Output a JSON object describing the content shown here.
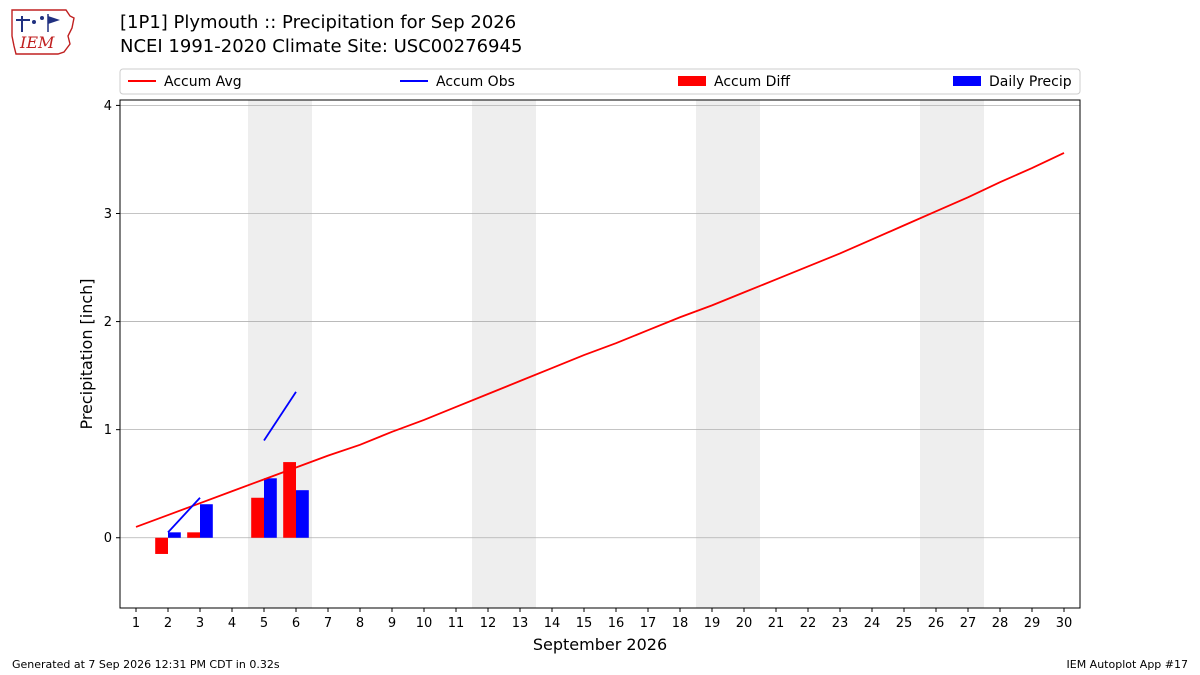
{
  "header": {
    "logo_text": "IEM",
    "title_line1": "[1P1] Plymouth :: Precipitation for Sep 2026",
    "title_line2": "NCEI 1991-2020 Climate Site: USC00276945"
  },
  "footer": {
    "generated": "Generated at 7 Sep 2026 12:31 PM CDT in 0.32s",
    "app": "IEM Autoplot App #17"
  },
  "colors": {
    "accum_avg": "#ff0000",
    "accum_obs": "#0000ff",
    "accum_diff": "#ff0000",
    "daily_precip": "#0000ff",
    "weekend_band": "#eeeeee",
    "grid": "#b0b0b0"
  },
  "chart_data": {
    "type": "bar",
    "xlabel": "September 2026",
    "ylabel": "Precipitation [inch]",
    "x": [
      1,
      2,
      3,
      4,
      5,
      6,
      7,
      8,
      9,
      10,
      11,
      12,
      13,
      14,
      15,
      16,
      17,
      18,
      19,
      20,
      21,
      22,
      23,
      24,
      25,
      26,
      27,
      28,
      29,
      30
    ],
    "xlim": [
      0.5,
      30.5
    ],
    "ylim": [
      -0.65,
      4.05
    ],
    "yticks": [
      0,
      1,
      2,
      3,
      4
    ],
    "grid": "y",
    "legend_placement": "top",
    "weekend_days": [
      5,
      6,
      12,
      13,
      19,
      20,
      26,
      27
    ],
    "series": [
      {
        "name": "Accum Avg",
        "kind": "line",
        "values": [
          0.1,
          0.21,
          0.32,
          0.43,
          0.54,
          0.65,
          0.76,
          0.86,
          0.98,
          1.09,
          1.21,
          1.33,
          1.45,
          1.57,
          1.69,
          1.8,
          1.92,
          2.04,
          2.15,
          2.27,
          2.39,
          2.51,
          2.63,
          2.76,
          2.89,
          3.02,
          3.15,
          3.29,
          3.42,
          3.56
        ]
      },
      {
        "name": "Accum Obs",
        "kind": "line",
        "values": [
          null,
          0.05,
          0.37,
          null,
          0.9,
          1.35,
          null,
          null,
          null,
          null,
          null,
          null,
          null,
          null,
          null,
          null,
          null,
          null,
          null,
          null,
          null,
          null,
          null,
          null,
          null,
          null,
          null,
          null,
          null,
          null
        ]
      },
      {
        "name": "Accum Diff",
        "kind": "bar",
        "values": [
          null,
          -0.15,
          0.05,
          null,
          0.37,
          0.7,
          null,
          null,
          null,
          null,
          null,
          null,
          null,
          null,
          null,
          null,
          null,
          null,
          null,
          null,
          null,
          null,
          null,
          null,
          null,
          null,
          null,
          null,
          null,
          null
        ]
      },
      {
        "name": "Daily Precip",
        "kind": "bar",
        "values": [
          null,
          0.05,
          0.31,
          null,
          0.55,
          0.44,
          null,
          null,
          null,
          null,
          null,
          null,
          null,
          null,
          null,
          null,
          null,
          null,
          null,
          null,
          null,
          null,
          null,
          null,
          null,
          null,
          null,
          null,
          null,
          null
        ]
      }
    ]
  }
}
